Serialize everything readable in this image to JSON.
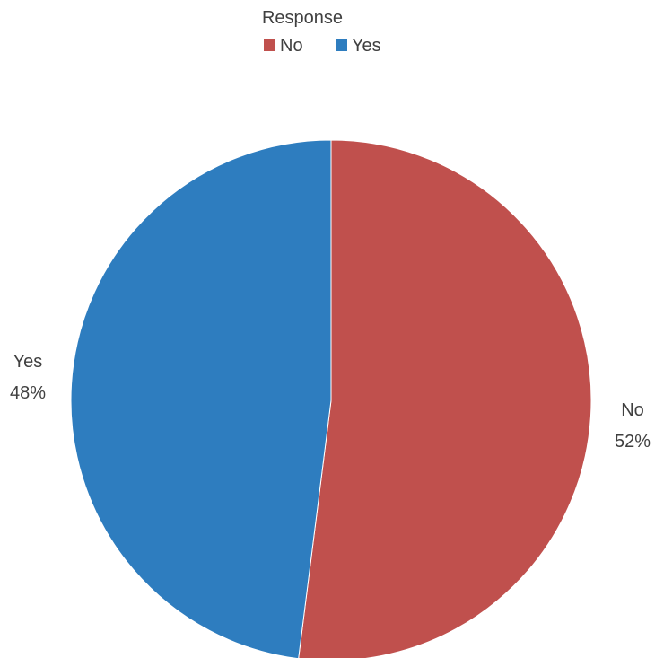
{
  "chart_data": {
    "type": "pie",
    "legend_title": "Response",
    "legend_position": "top",
    "slices": [
      {
        "label": "No",
        "value": 52,
        "value_label": "52%",
        "color": "#c0504d"
      },
      {
        "label": "Yes",
        "value": 48,
        "value_label": "48%",
        "color": "#2e7dbf"
      }
    ],
    "start_angle_deg": 0,
    "direction": "clockwise"
  }
}
